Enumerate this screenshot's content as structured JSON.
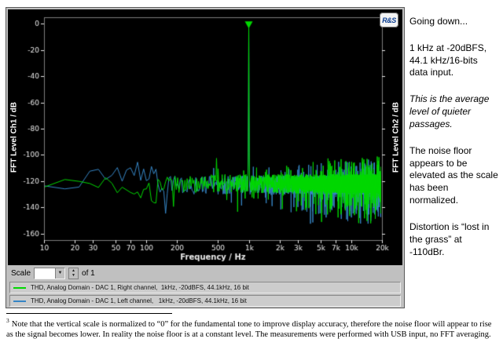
{
  "analyzer": {
    "logo_text": "R&S",
    "scale_label": "Scale",
    "scale_dropdown_value": "",
    "scan_of_label": "of 1"
  },
  "icons": {
    "dropdown_arrow": "▼",
    "spinner_up": "▲",
    "spinner_down": "▼"
  },
  "chart_data": {
    "type": "line",
    "x_scale": "log",
    "xlabel": "Frequency / Hz",
    "ylabel_left": "FFT Level Ch1 / dB",
    "ylabel_right": "FFT Level Ch2 / dB",
    "xlim": [
      10,
      20000
    ],
    "ylim": [
      -165,
      5
    ],
    "yticks": [
      0,
      -20,
      -40,
      -60,
      -80,
      -100,
      -120,
      -140,
      -160
    ],
    "xticks": [
      {
        "v": 10,
        "label": "10"
      },
      {
        "v": 20,
        "label": "20"
      },
      {
        "v": 30,
        "label": "30"
      },
      {
        "v": 50,
        "label": "50"
      },
      {
        "v": 70,
        "label": "70"
      },
      {
        "v": 100,
        "label": "100"
      },
      {
        "v": 200,
        "label": "200"
      },
      {
        "v": 500,
        "label": "500"
      },
      {
        "v": 1000,
        "label": "1k"
      },
      {
        "v": 2000,
        "label": "2k"
      },
      {
        "v": 3000,
        "label": "3k"
      },
      {
        "v": 5000,
        "label": "5k"
      },
      {
        "v": 7000,
        "label": "7k"
      },
      {
        "v": 10000,
        "label": "10k"
      },
      {
        "v": 20000,
        "label": "20k"
      }
    ],
    "grid": false,
    "plot_background": "#000000",
    "legend_position": "bottom",
    "series": [
      {
        "label": "THD, Analog Domain - DAC 1, Right channel,  1kHz, -20dBFS, 44.1kHz, 16 bit",
        "color": "#00d800",
        "noise_floor_db": -122,
        "noise_spread_db": 13,
        "noise_min_db": -152,
        "noise_max_db": -106,
        "tone": {
          "freq_hz": 1000,
          "level_db": 0
        }
      },
      {
        "label": "THD, Analog Domain - DAC 1, Left channel,   1kHz, -20dBFS, 44.1kHz, 16 bit",
        "color": "#3585c5",
        "noise_floor_db": -123,
        "noise_spread_db": 13,
        "noise_min_db": -152,
        "noise_max_db": -106,
        "tone": {
          "freq_hz": 1000,
          "level_db": 0
        }
      }
    ],
    "marker": {
      "x_hz": 1000,
      "y_db": 0,
      "shape": "triangle-down",
      "color": "#00d800"
    }
  },
  "notes": {
    "p1": "Going down...",
    "p2": "1 kHz at -20dBFS, 44.1 kHz/16-bits data input.",
    "p3": "This is the average level of quieter passages.",
    "p4": "The noise floor appears to be elevated as the scale has been normalized.",
    "p5": "Distortion is “lost in the grass” at -110dBr."
  },
  "footnote": {
    "ref": "3",
    "text": "Note that the vertical scale is normalized to “0” for the fundamental tone to improve display accuracy, therefore the noise floor will appear to rise as the signal becomes lower. In reality the noise floor is at a constant level. The measurements were performed with USB input, no FFT averaging."
  }
}
